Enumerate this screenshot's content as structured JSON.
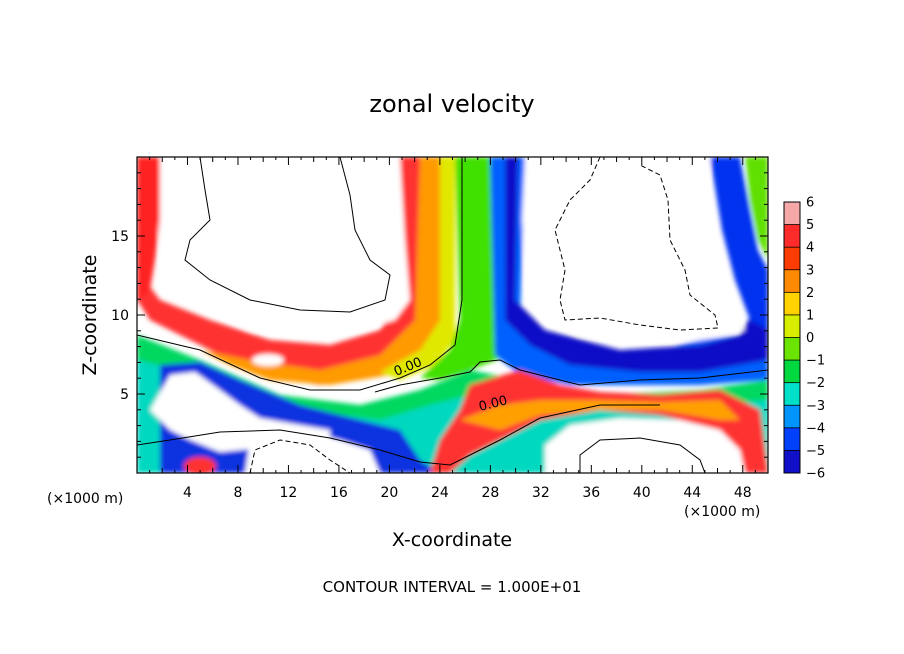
{
  "chart_data": {
    "type": "heatmap",
    "title": "zonal velocity",
    "xlabel": "X-coordinate",
    "ylabel": "Z-coordinate",
    "x_unit": "(×1000 m)",
    "y_unit": "(×1000 m)",
    "xlim": [
      0,
      50
    ],
    "ylim": [
      0,
      20
    ],
    "x_ticks": [
      4,
      8,
      12,
      16,
      20,
      24,
      28,
      32,
      36,
      40,
      44,
      48
    ],
    "y_ticks": [
      5,
      10,
      15
    ],
    "colorbar": {
      "levels": [
        6,
        5,
        4,
        3,
        2,
        1,
        0,
        -1,
        -2,
        -3,
        -4,
        -5,
        -6
      ],
      "colors": [
        "#f4a8a8",
        "#ff2a2a",
        "#ff3c00",
        "#ff8a00",
        "#ffd200",
        "#d8ee00",
        "#6ae400",
        "#00d840",
        "#00e0c8",
        "#0094ff",
        "#0040ff",
        "#1010c8",
        "#7a00b4"
      ]
    },
    "contour_labels": [
      {
        "text": "0.00",
        "x": 21,
        "z": 6.3
      },
      {
        "text": "0.00",
        "x": 28.5,
        "z": 4.3
      }
    ],
    "footer": "CONTOUR INTERVAL = 1.000E+01"
  }
}
